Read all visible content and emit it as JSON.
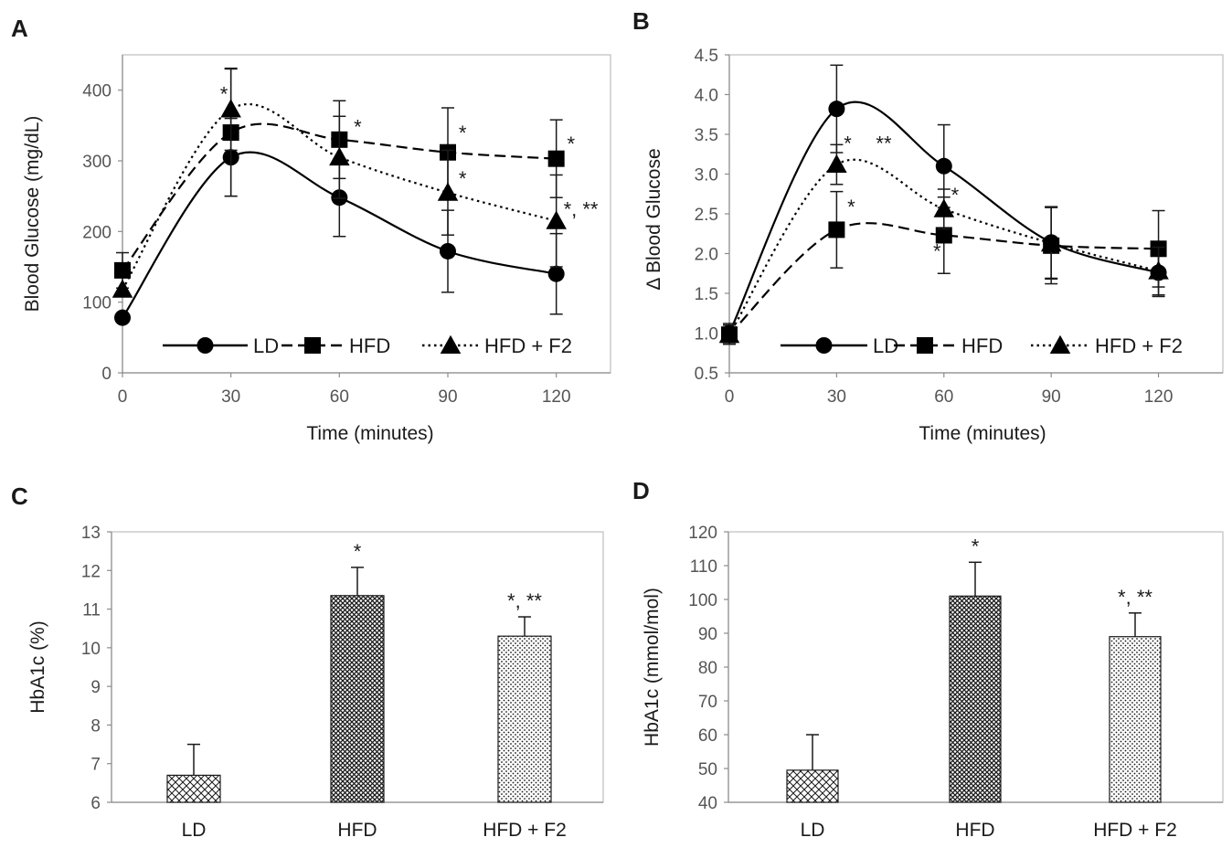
{
  "chart_data": [
    {
      "panel": "A",
      "type": "line",
      "title": "",
      "xlabel": "Time (minutes)",
      "ylabel": "Blood Glucose (mg/dL)",
      "xlim": [
        0,
        135
      ],
      "ylim": [
        0,
        450
      ],
      "xticks": [
        0,
        30,
        60,
        90,
        120
      ],
      "yticks": [
        0,
        100,
        200,
        300,
        400
      ],
      "series": [
        {
          "name": "LD",
          "style": "solid",
          "marker": "circle",
          "x": [
            0,
            30,
            60,
            90,
            120
          ],
          "values": [
            78,
            305,
            248,
            172,
            140
          ],
          "err": [
            0,
            55,
            55,
            58,
            57
          ]
        },
        {
          "name": "HFD",
          "style": "dashed",
          "marker": "square",
          "x": [
            0,
            30,
            60,
            90,
            120
          ],
          "values": [
            145,
            340,
            330,
            312,
            303
          ],
          "err": [
            25,
            90,
            55,
            63,
            55
          ]
        },
        {
          "name": "HFD + F2",
          "style": "dotted",
          "marker": "triangle",
          "x": [
            0,
            30,
            60,
            90,
            120
          ],
          "values": [
            118,
            373,
            305,
            255,
            215
          ],
          "err": [
            0,
            58,
            58,
            60,
            65
          ]
        }
      ],
      "annotations": [
        {
          "text": "*",
          "x": 27,
          "y": 385
        },
        {
          "text": "*",
          "x": 64,
          "y": 338
        },
        {
          "text": "*",
          "x": 93,
          "y": 330
        },
        {
          "text": "*",
          "x": 93,
          "y": 265
        },
        {
          "text": "*",
          "x": 123,
          "y": 314
        },
        {
          "text": "*, **",
          "x": 122,
          "y": 222
        }
      ],
      "legend": "bottom"
    },
    {
      "panel": "B",
      "type": "line",
      "title": "",
      "xlabel": "Time (minutes)",
      "ylabel": "Δ Blood Glucose",
      "xlim": [
        0,
        138
      ],
      "ylim": [
        0.5,
        4.5
      ],
      "xticks": [
        0,
        30,
        60,
        90,
        120
      ],
      "yticks": [
        "0.5",
        "1.0",
        "1.5",
        "2.0",
        "2.5",
        "3.0",
        "3.5",
        "4.0",
        "4.5"
      ],
      "series": [
        {
          "name": "LD",
          "style": "solid",
          "marker": "circle",
          "x": [
            0,
            30,
            60,
            90,
            120
          ],
          "values": [
            1.0,
            3.82,
            3.1,
            2.14,
            1.76
          ],
          "err": [
            0.12,
            0.55,
            0.52,
            0.45,
            0.3
          ]
        },
        {
          "name": "HFD",
          "style": "dashed",
          "marker": "square",
          "x": [
            0,
            30,
            60,
            90,
            120
          ],
          "values": [
            0.98,
            2.3,
            2.23,
            2.1,
            2.06
          ],
          "err": [
            0.12,
            0.48,
            0.48,
            0.48,
            0.48
          ]
        },
        {
          "name": "HFD + F2",
          "style": "dotted",
          "marker": "triangle",
          "x": [
            0,
            30,
            60,
            90,
            120
          ],
          "values": [
            0.98,
            3.12,
            2.56,
            2.13,
            1.78
          ],
          "err": [
            0.12,
            0.25,
            0.25,
            0.45,
            0.3
          ]
        }
      ],
      "annotations": [
        {
          "text": "*",
          "x": 32,
          "y": 3.3
        },
        {
          "text": "**",
          "x": 41,
          "y": 3.3
        },
        {
          "text": "*",
          "x": 62,
          "y": 2.65
        },
        {
          "text": "*",
          "x": 33,
          "y": 2.5
        },
        {
          "text": "*",
          "x": 57,
          "y": 1.94
        }
      ],
      "legend": "bottom"
    },
    {
      "panel": "C",
      "type": "bar",
      "title": "",
      "xlabel": "",
      "ylabel": "HbA1c (%)",
      "ylim": [
        6,
        13
      ],
      "yticks": [
        6,
        7,
        8,
        9,
        10,
        11,
        12,
        13
      ],
      "categories": [
        "LD",
        "HFD",
        "HFD + F2"
      ],
      "values": [
        6.7,
        11.35,
        10.3
      ],
      "err": [
        0.8,
        0.73,
        0.5
      ],
      "patterns": [
        "crosshatch-light",
        "crosshatch-dense",
        "dots"
      ],
      "annotations": [
        "",
        "*",
        "*, **"
      ]
    },
    {
      "panel": "D",
      "type": "bar",
      "title": "",
      "xlabel": "",
      "ylabel": "HbA1c (mmol/mol)",
      "ylim": [
        40,
        120
      ],
      "yticks": [
        40,
        50,
        60,
        70,
        80,
        90,
        100,
        110,
        120
      ],
      "categories": [
        "LD",
        "HFD",
        "HFD + F2"
      ],
      "values": [
        49.5,
        101,
        89
      ],
      "err": [
        10.5,
        10,
        7
      ],
      "patterns": [
        "crosshatch-light",
        "crosshatch-dense",
        "dots"
      ],
      "annotations": [
        "",
        "*",
        "*, **"
      ]
    }
  ]
}
